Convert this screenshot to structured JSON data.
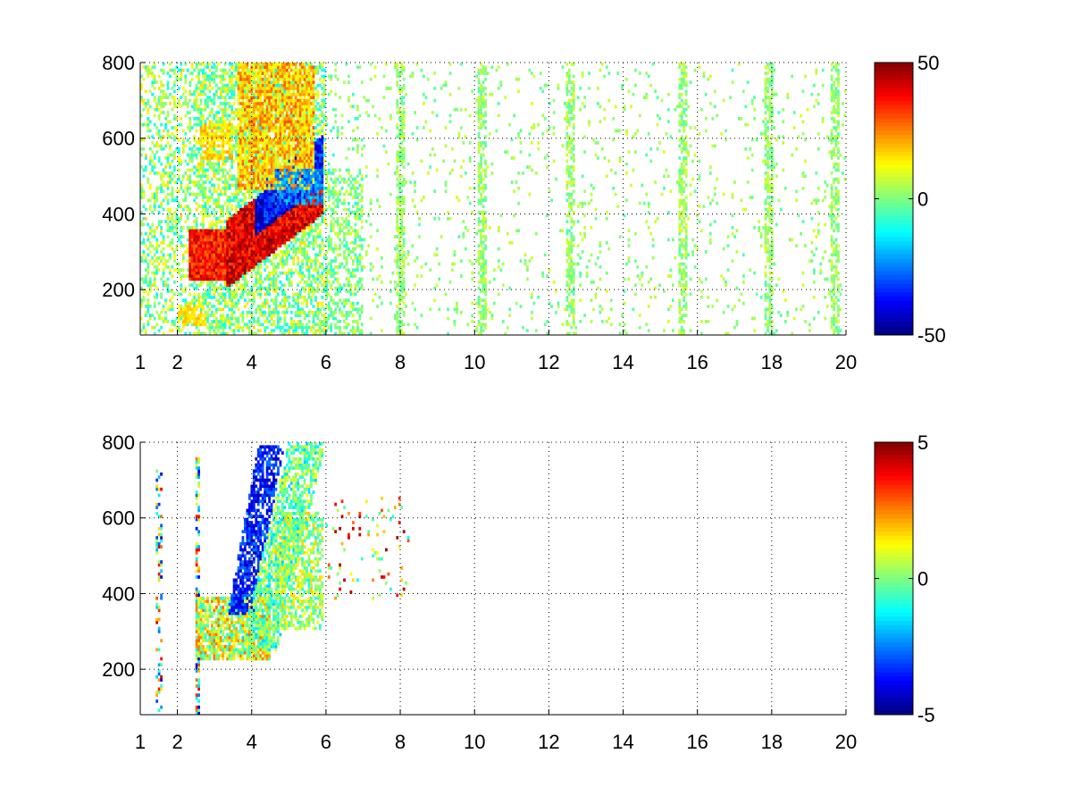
{
  "chart_data": [
    {
      "type": "heatmap",
      "title": "",
      "xlabel": "",
      "ylabel": "",
      "xlim": [
        1,
        20
      ],
      "ylim": [
        80,
        800
      ],
      "xticks": [
        1,
        2,
        4,
        6,
        8,
        10,
        12,
        14,
        16,
        18,
        20
      ],
      "yticks": [
        200,
        400,
        600,
        800
      ],
      "grid": true,
      "colormap": "jet",
      "colorbar": {
        "range": [
          -50,
          50
        ],
        "ticks": [
          -50,
          0,
          50
        ]
      },
      "features": [
        {
          "name": "lower-band",
          "x_range": [
            2.4,
            3.6
          ],
          "y_range": [
            220,
            360
          ],
          "value": 40
        },
        {
          "name": "diagonal-positive",
          "x_range": [
            3.4,
            5.5
          ],
          "y_range": [
            280,
            480
          ],
          "value": 45
        },
        {
          "name": "diagonal-negative",
          "x_range": [
            4.2,
            5.9
          ],
          "y_range": [
            280,
            450
          ],
          "value": -45
        },
        {
          "name": "upper-warm-region",
          "x_range": [
            3.6,
            5.6
          ],
          "y_range": [
            480,
            800
          ],
          "value": 20
        },
        {
          "name": "sparse-stripes",
          "x_range": [
            6,
            20
          ],
          "y_range": [
            80,
            800
          ],
          "value": 0
        }
      ]
    },
    {
      "type": "heatmap",
      "title": "",
      "xlabel": "",
      "ylabel": "",
      "xlim": [
        1,
        20
      ],
      "ylim": [
        80,
        800
      ],
      "xticks": [
        1,
        2,
        4,
        6,
        8,
        10,
        12,
        14,
        16,
        18,
        20
      ],
      "yticks": [
        200,
        400,
        600,
        800
      ],
      "grid": true,
      "colormap": "jet",
      "colorbar": {
        "range": [
          -5,
          5
        ],
        "ticks": [
          -5,
          0,
          5
        ]
      },
      "features": [
        {
          "name": "lower-band",
          "x_range": [
            2.5,
            4.5
          ],
          "y_range": [
            220,
            380
          ],
          "value": 0.5
        },
        {
          "name": "blue-arc",
          "x_range": [
            3.6,
            5.2
          ],
          "y_range": [
            350,
            800
          ],
          "value": -3.5
        },
        {
          "name": "green-arc",
          "x_range": [
            4.2,
            6
          ],
          "y_range": [
            260,
            600
          ],
          "value": 0
        },
        {
          "name": "scattered-points",
          "x_range": [
            6,
            8.2
          ],
          "y_range": [
            380,
            660
          ],
          "value": 3
        }
      ]
    }
  ]
}
